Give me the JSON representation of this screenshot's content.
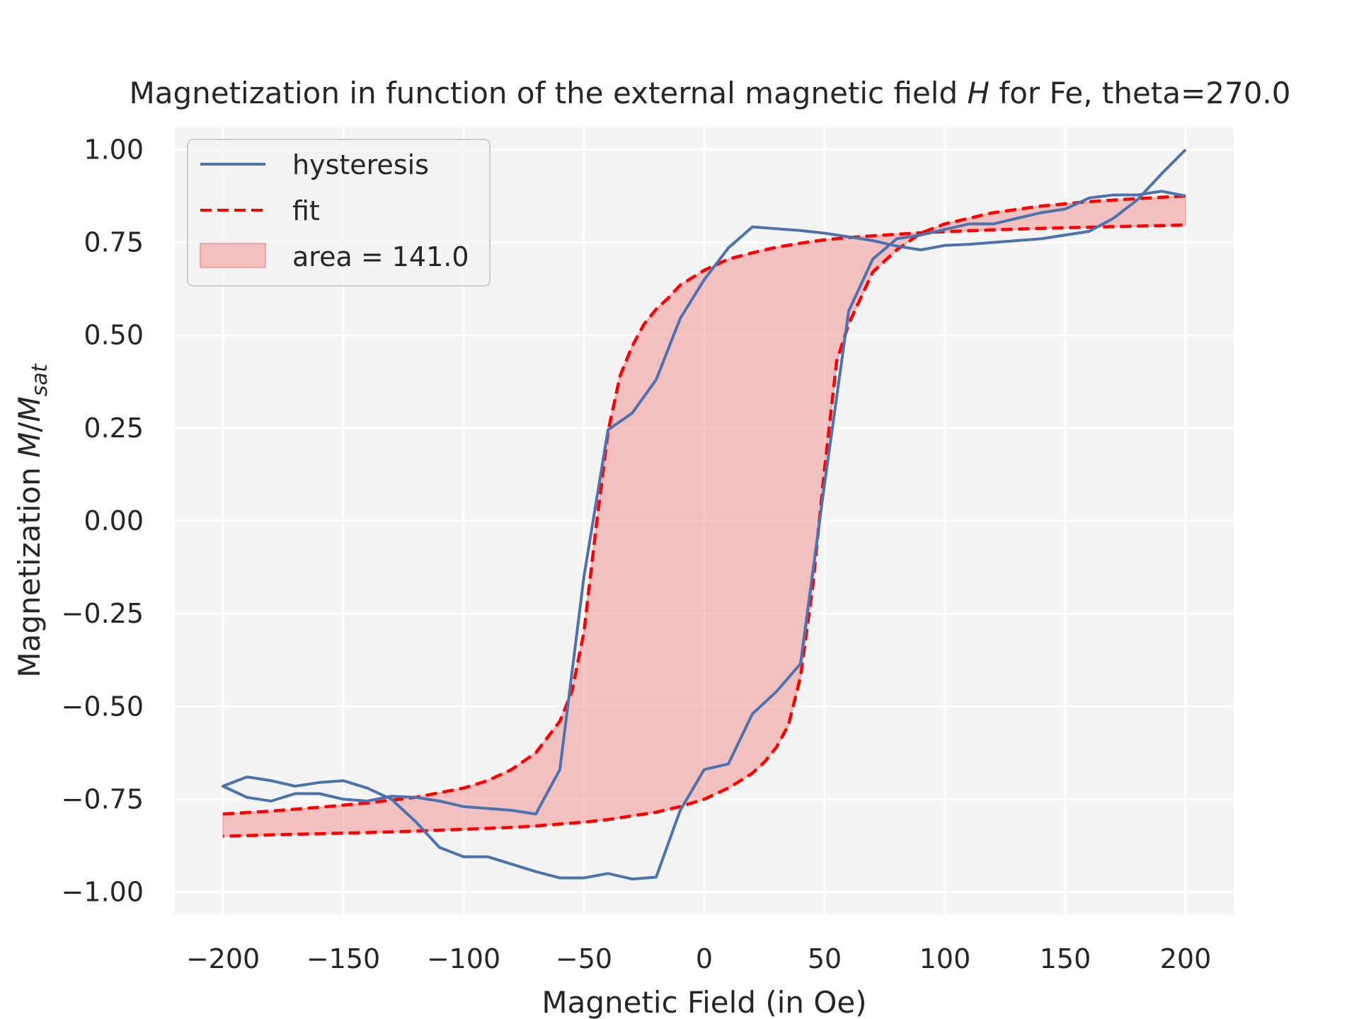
{
  "chart_data": {
    "type": "line",
    "title_parts": [
      "Magnetization in function of the external magnetic field ",
      "H",
      " for Fe, theta=270.0"
    ],
    "xlabel": "Magnetic Field (in Oe)",
    "ylabel_parts": [
      "Magnetization ",
      "M",
      "/",
      "M",
      "sat"
    ],
    "xlim": [
      -220,
      220
    ],
    "ylim": [
      -1.06,
      1.06
    ],
    "xticks": [
      -200,
      -150,
      -100,
      -50,
      0,
      50,
      100,
      150,
      200
    ],
    "xtick_labels": [
      "−200",
      "−150",
      "−100",
      "−50",
      "0",
      "50",
      "100",
      "150",
      "200"
    ],
    "yticks": [
      1.0,
      0.75,
      0.5,
      0.25,
      0.0,
      -0.25,
      -0.5,
      -0.75,
      -1.0
    ],
    "ytick_labels": [
      "1.00",
      "0.75",
      "0.50",
      "0.25",
      "0.00",
      "−0.25",
      "−0.50",
      "−0.75",
      "−1.00"
    ],
    "grid": true,
    "legend_position": "top-left",
    "colors": {
      "background": "#f4f4f4",
      "hysteresis": "#4c72b0",
      "fit": "#ff0000",
      "area": "#f28080"
    },
    "series": [
      {
        "name": "hysteresis",
        "style": "solid",
        "x": [
          200,
          190,
          180,
          170,
          160,
          150,
          140,
          130,
          120,
          110,
          100,
          90,
          80,
          70,
          60,
          50,
          40,
          30,
          20,
          10,
          0,
          -10,
          -20,
          -30,
          -40,
          -50,
          -60,
          -70,
          -80,
          -90,
          -100,
          -110,
          -120,
          -130,
          -140,
          -150,
          -160,
          -170,
          -180,
          -190,
          -200,
          -190,
          -180,
          -170,
          -160,
          -150,
          -140,
          -130,
          -120,
          -110,
          -100,
          -90,
          -80,
          -70,
          -60,
          -50,
          -40,
          -30,
          -20,
          -10,
          0,
          10,
          20,
          30,
          40,
          50,
          60,
          70,
          80,
          90,
          100,
          110,
          120,
          130,
          140,
          150,
          160,
          170,
          180,
          190,
          200
        ],
        "y": [
          1.0,
          0.935,
          0.865,
          0.815,
          0.78,
          0.77,
          0.76,
          0.755,
          0.75,
          0.745,
          0.742,
          0.73,
          0.74,
          0.755,
          0.765,
          0.775,
          0.782,
          0.787,
          0.792,
          0.735,
          0.65,
          0.545,
          0.38,
          0.29,
          0.245,
          -0.15,
          -0.67,
          -0.79,
          -0.78,
          -0.775,
          -0.77,
          -0.755,
          -0.745,
          -0.742,
          -0.755,
          -0.75,
          -0.735,
          -0.735,
          -0.755,
          -0.745,
          -0.715,
          -0.69,
          -0.7,
          -0.715,
          -0.705,
          -0.7,
          -0.72,
          -0.75,
          -0.81,
          -0.88,
          -0.905,
          -0.905,
          -0.925,
          -0.945,
          -0.962,
          -0.962,
          -0.95,
          -0.965,
          -0.96,
          -0.78,
          -0.67,
          -0.655,
          -0.52,
          -0.46,
          -0.385,
          0.1,
          0.565,
          0.705,
          0.76,
          0.77,
          0.785,
          0.8,
          0.8,
          0.815,
          0.83,
          0.84,
          0.87,
          0.878,
          0.878,
          0.888,
          0.875
        ]
      },
      {
        "name": "fit",
        "style": "dashed",
        "branches": [
          {
            "x": [
              -200,
              -180,
              -160,
              -140,
              -120,
              -100,
              -90,
              -80,
              -70,
              -60,
              -55,
              -50,
              -45,
              -40,
              -35,
              -30,
              -25,
              -20,
              -15,
              -10,
              -5,
              0,
              10,
              20,
              30,
              40,
              50,
              60,
              70,
              80,
              90,
              100,
              120,
              140,
              160,
              180,
              200
            ],
            "y": [
              -0.79,
              -0.782,
              -0.772,
              -0.76,
              -0.745,
              -0.72,
              -0.7,
              -0.67,
              -0.625,
              -0.54,
              -0.46,
              -0.3,
              -0.02,
              0.24,
              0.39,
              0.47,
              0.53,
              0.57,
              0.6,
              0.635,
              0.655,
              0.675,
              0.705,
              0.722,
              0.737,
              0.748,
              0.757,
              0.763,
              0.768,
              0.772,
              0.776,
              0.779,
              0.784,
              0.788,
              0.791,
              0.794,
              0.797
            ]
          },
          {
            "x": [
              200,
              180,
              160,
              140,
              120,
              100,
              90,
              80,
              70,
              65,
              60,
              55,
              50,
              45,
              40,
              35,
              30,
              25,
              20,
              10,
              0,
              -10,
              -20,
              -30,
              -40,
              -50,
              -60,
              -70,
              -80,
              -100,
              -120,
              -140,
              -160,
              -180,
              -200
            ],
            "y": [
              0.875,
              0.868,
              0.86,
              0.848,
              0.83,
              0.8,
              0.775,
              0.73,
              0.67,
              0.6,
              0.53,
              0.43,
              0.14,
              -0.18,
              -0.42,
              -0.55,
              -0.61,
              -0.65,
              -0.68,
              -0.72,
              -0.75,
              -0.77,
              -0.785,
              -0.795,
              -0.805,
              -0.812,
              -0.817,
              -0.822,
              -0.826,
              -0.831,
              -0.836,
              -0.84,
              -0.843,
              -0.846,
              -0.85
            ]
          }
        ]
      },
      {
        "name": "area = 141.0",
        "style": "fill",
        "value": 141.0
      }
    ],
    "legend_labels": [
      "hysteresis",
      "fit",
      "area = 141.0"
    ]
  }
}
